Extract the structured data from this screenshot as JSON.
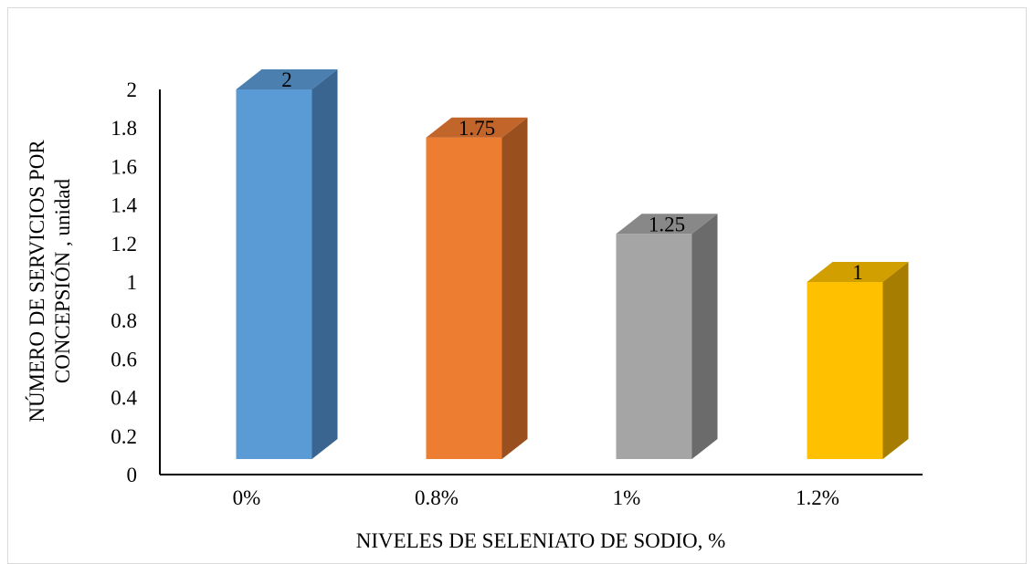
{
  "chart_data": {
    "type": "bar",
    "style": "3d-column",
    "categories": [
      "0%",
      "0.8%",
      "1%",
      "1.2%"
    ],
    "values": [
      2,
      1.75,
      1.25,
      1
    ],
    "data_labels": [
      "2",
      "1.75",
      "1.25",
      "1"
    ],
    "colors": [
      "#5b9bd5",
      "#ed7d31",
      "#a5a5a5",
      "#ffc000"
    ],
    "side_colors": [
      "#3a6590",
      "#9a4f1f",
      "#6b6b6b",
      "#a67d00"
    ],
    "top_colors": [
      "#4a7fb0",
      "#c2652a",
      "#888888",
      "#d19f00"
    ],
    "yticks": [
      "0",
      "0.2",
      "0.4",
      "0.6",
      "0.8",
      "1",
      "1.2",
      "1.4",
      "1.6",
      "1.8",
      "2"
    ],
    "ylim": [
      0,
      2
    ],
    "xlabel": "NIVELES DE SELENIATO DE SODIO, %",
    "ylabel_line1": "NÚMERO DE SERVICIOS POR",
    "ylabel_line2": "CONCEPSIÓN , unidad",
    "grid": false,
    "legend": "none"
  }
}
